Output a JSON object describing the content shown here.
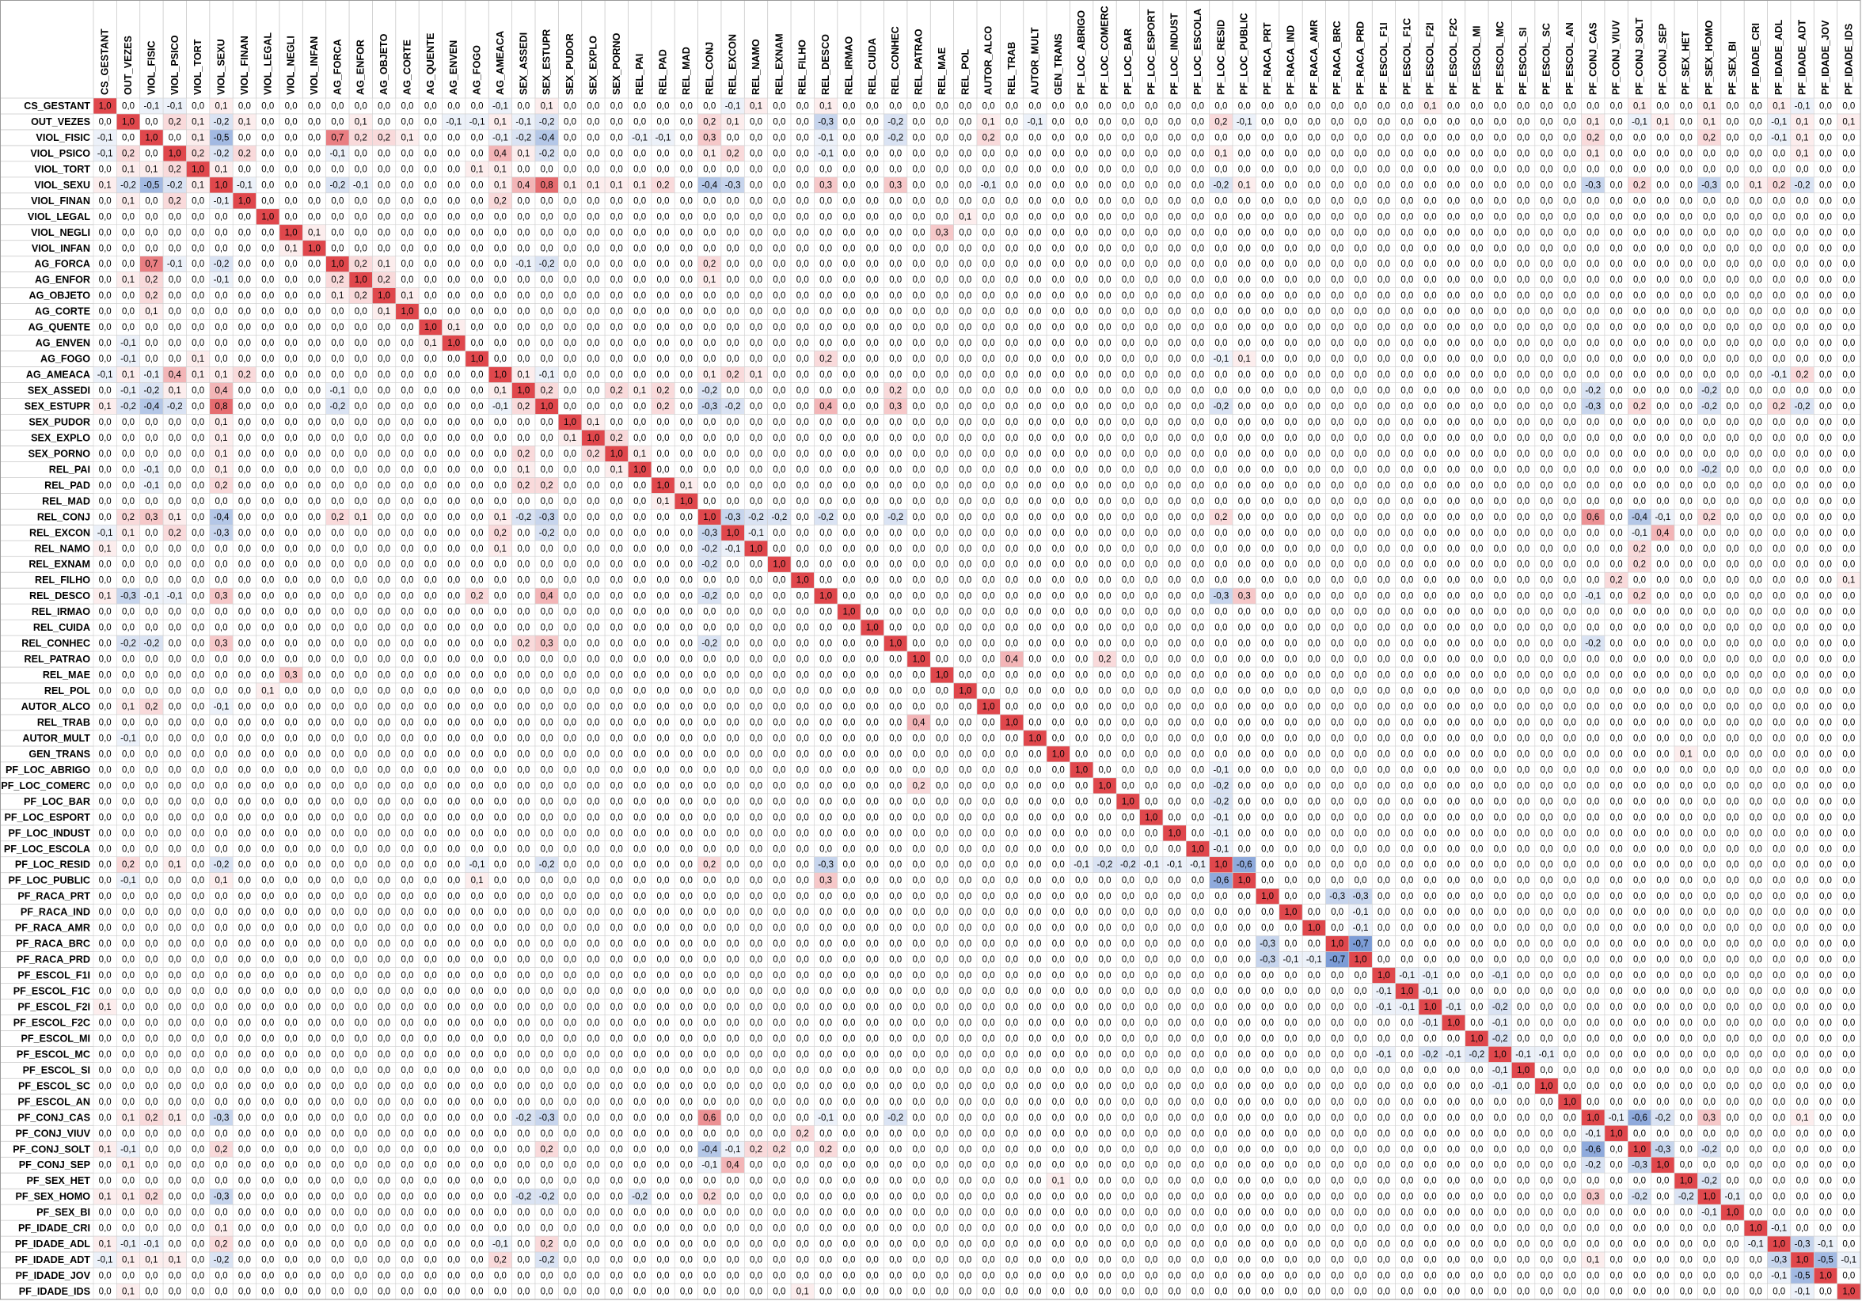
{
  "chart_data": {
    "type": "heatmap",
    "title": "",
    "variables": [
      "CS_GESTANT",
      "OUT_VEZES",
      "VIOL_FISIC",
      "VIOL_PSICO",
      "VIOL_TORT",
      "VIOL_SEXU",
      "VIOL_FINAN",
      "VIOL_LEGAL",
      "VIOL_NEGLI",
      "VIOL_INFAN",
      "AG_FORCA",
      "AG_ENFOR",
      "AG_OBJETO",
      "AG_CORTE",
      "AG_QUENTE",
      "AG_ENVEN",
      "AG_FOGO",
      "AG_AMEACA",
      "SEX_ASSEDI",
      "SEX_ESTUPR",
      "SEX_PUDOR",
      "SEX_EXPLO",
      "SEX_PORNO",
      "REL_PAI",
      "REL_PAD",
      "REL_MAD",
      "REL_CONJ",
      "REL_EXCON",
      "REL_NAMO",
      "REL_EXNAM",
      "REL_FILHO",
      "REL_DESCO",
      "REL_IRMAO",
      "REL_CUIDA",
      "REL_CONHEC",
      "REL_PATRAO",
      "REL_MAE",
      "REL_POL",
      "AUTOR_ALCO",
      "REL_TRAB",
      "AUTOR_MULT",
      "GEN_TRANS",
      "PF_LOC_ABRIGO",
      "PF_LOC_COMERC",
      "PF_LOC_BAR",
      "PF_LOC_ESPORT",
      "PF_LOC_INDUST",
      "PF_LOC_ESCOLA",
      "PF_LOC_RESID",
      "PF_LOC_PUBLIC",
      "PF_RACA_PRT",
      "PF_RACA_IND",
      "PF_RACA_AMR",
      "PF_RACA_BRC",
      "PF_RACA_PRD",
      "PF_ESCOL_F1I",
      "PF_ESCOL_F1C",
      "PF_ESCOL_F2I",
      "PF_ESCOL_F2C",
      "PF_ESCOL_MI",
      "PF_ESCOL_MC",
      "PF_ESCOL_SI",
      "PF_ESCOL_SC",
      "PF_ESCOL_AN",
      "PF_CONJ_CAS",
      "PF_CONJ_VIUV",
      "PF_CONJ_SOLT",
      "PF_CONJ_SEP",
      "PF_SEX_HET",
      "PF_SEX_HOMO",
      "PF_SEX_BI",
      "PF_IDADE_CRI",
      "PF_IDADE_ADL",
      "PF_IDADE_ADT",
      "PF_IDADE_JOV",
      "PF_IDADE_IDS"
    ],
    "diagonal": 1.0,
    "default_value": 0.0,
    "value_range": [
      -1,
      1
    ],
    "color_scale": {
      "negative": "#4472c4",
      "zero": "#ffffff",
      "positive": "#e0474c"
    },
    "decimal_separator": ",",
    "pairs": [
      [
        "CS_GESTANT",
        "VIOL_FISIC",
        -0.1
      ],
      [
        "CS_GESTANT",
        "VIOL_PSICO",
        -0.1
      ],
      [
        "CS_GESTANT",
        "VIOL_SEXU",
        0.1
      ],
      [
        "CS_GESTANT",
        "AG_FORCA",
        0.0
      ],
      [
        "CS_GESTANT",
        "AG_AMEACA",
        -0.1
      ],
      [
        "CS_GESTANT",
        "SEX_ESTUPR",
        0.1
      ],
      [
        "CS_GESTANT",
        "REL_EXCON",
        -0.1
      ],
      [
        "CS_GESTANT",
        "REL_NAMO",
        0.1
      ],
      [
        "CS_GESTANT",
        "REL_DESCO",
        0.1
      ],
      [
        "CS_GESTANT",
        "PF_IDADE_ADT",
        -0.1
      ],
      [
        "CS_GESTANT",
        "PF_IDADE_ADL",
        0.1
      ],
      [
        "CS_GESTANT",
        "PF_CONJ_SOLT",
        0.1
      ],
      [
        "CS_GESTANT",
        "PF_ESCOL_F2I",
        0.1
      ],
      [
        "CS_GESTANT",
        "PF_SEX_HOMO",
        0.1
      ],
      [
        "OUT_VEZES",
        "VIOL_PSICO",
        0.2
      ],
      [
        "OUT_VEZES",
        "VIOL_SEXU",
        -0.2
      ],
      [
        "OUT_VEZES",
        "VIOL_FINAN",
        0.1
      ],
      [
        "OUT_VEZES",
        "VIOL_TORT",
        0.1
      ],
      [
        "OUT_VEZES",
        "AG_ENFOR",
        0.1
      ],
      [
        "OUT_VEZES",
        "AG_FOGO",
        -0.1
      ],
      [
        "OUT_VEZES",
        "AG_ENVEN",
        -0.1
      ],
      [
        "OUT_VEZES",
        "AG_AMEACA",
        0.1
      ],
      [
        "OUT_VEZES",
        "SEX_ASSEDI",
        -0.1
      ],
      [
        "OUT_VEZES",
        "SEX_ESTUPR",
        -0.2
      ],
      [
        "OUT_VEZES",
        "REL_CONJ",
        0.2
      ],
      [
        "OUT_VEZES",
        "REL_EXCON",
        0.1
      ],
      [
        "OUT_VEZES",
        "REL_DESCO",
        -0.3
      ],
      [
        "OUT_VEZES",
        "REL_CONHEC",
        -0.2
      ],
      [
        "OUT_VEZES",
        "AUTOR_ALCO",
        0.1
      ],
      [
        "OUT_VEZES",
        "AUTOR_MULT",
        -0.1
      ],
      [
        "OUT_VEZES",
        "PF_LOC_RESID",
        0.2
      ],
      [
        "OUT_VEZES",
        "PF_LOC_PUBLIC",
        -0.1
      ],
      [
        "OUT_VEZES",
        "PF_CONJ_CAS",
        0.1
      ],
      [
        "OUT_VEZES",
        "PF_CONJ_SOLT",
        -0.1
      ],
      [
        "OUT_VEZES",
        "PF_CONJ_SEP",
        0.1
      ],
      [
        "OUT_VEZES",
        "PF_SEX_HOMO",
        0.1
      ],
      [
        "OUT_VEZES",
        "PF_IDADE_ADL",
        -0.1
      ],
      [
        "OUT_VEZES",
        "PF_IDADE_ADT",
        0.1
      ],
      [
        "OUT_VEZES",
        "PF_IDADE_IDS",
        0.1
      ],
      [
        "VIOL_FISIC",
        "VIOL_PSICO",
        0.0
      ],
      [
        "VIOL_FISIC",
        "VIOL_TORT",
        0.1
      ],
      [
        "VIOL_FISIC",
        "VIOL_SEXU",
        -0.5
      ],
      [
        "VIOL_FISIC",
        "AG_FORCA",
        0.7
      ],
      [
        "VIOL_FISIC",
        "AG_ENFOR",
        0.2
      ],
      [
        "VIOL_FISIC",
        "AG_OBJETO",
        0.2
      ],
      [
        "VIOL_FISIC",
        "AG_CORTE",
        0.1
      ],
      [
        "VIOL_FISIC",
        "AG_AMEACA",
        -0.1
      ],
      [
        "VIOL_FISIC",
        "SEX_ASSEDI",
        -0.2
      ],
      [
        "VIOL_FISIC",
        "SEX_ESTUPR",
        -0.4
      ],
      [
        "VIOL_FISIC",
        "REL_PAI",
        -0.1
      ],
      [
        "VIOL_FISIC",
        "REL_PAD",
        -0.1
      ],
      [
        "VIOL_FISIC",
        "REL_CONJ",
        0.3
      ],
      [
        "VIOL_FISIC",
        "REL_DESCO",
        -0.1
      ],
      [
        "VIOL_FISIC",
        "REL_CONHEC",
        -0.2
      ],
      [
        "VIOL_FISIC",
        "AUTOR_ALCO",
        0.2
      ],
      [
        "VIOL_FISIC",
        "PF_CONJ_CAS",
        0.2
      ],
      [
        "VIOL_FISIC",
        "PF_SEX_HOMO",
        0.2
      ],
      [
        "VIOL_FISIC",
        "PF_IDADE_ADT",
        0.1
      ],
      [
        "VIOL_FISIC",
        "PF_IDADE_ADL",
        -0.1
      ],
      [
        "VIOL_PSICO",
        "VIOL_TORT",
        0.2
      ],
      [
        "VIOL_PSICO",
        "VIOL_SEXU",
        -0.2
      ],
      [
        "VIOL_PSICO",
        "VIOL_FINAN",
        0.2
      ],
      [
        "VIOL_PSICO",
        "AG_FORCA",
        -0.1
      ],
      [
        "VIOL_PSICO",
        "AG_AMEACA",
        0.4
      ],
      [
        "VIOL_PSICO",
        "SEX_ASSEDI",
        0.1
      ],
      [
        "VIOL_PSICO",
        "SEX_ESTUPR",
        -0.2
      ],
      [
        "VIOL_PSICO",
        "REL_CONJ",
        0.1
      ],
      [
        "VIOL_PSICO",
        "REL_EXCON",
        0.2
      ],
      [
        "VIOL_PSICO",
        "REL_DESCO",
        -0.1
      ],
      [
        "VIOL_PSICO",
        "PF_LOC_RESID",
        0.1
      ],
      [
        "VIOL_PSICO",
        "PF_CONJ_CAS",
        0.1
      ],
      [
        "VIOL_PSICO",
        "PF_IDADE_ADT",
        0.1
      ],
      [
        "VIOL_TORT",
        "VIOL_SEXU",
        0.1
      ],
      [
        "VIOL_TORT",
        "AG_AMEACA",
        0.1
      ],
      [
        "VIOL_TORT",
        "AG_FOGO",
        0.1
      ],
      [
        "VIOL_SEXU",
        "VIOL_FINAN",
        -0.1
      ],
      [
        "VIOL_SEXU",
        "AG_FORCA",
        -0.2
      ],
      [
        "VIOL_SEXU",
        "AG_ENFOR",
        -0.1
      ],
      [
        "VIOL_SEXU",
        "AG_AMEACA",
        0.1
      ],
      [
        "VIOL_SEXU",
        "SEX_ASSEDI",
        0.4
      ],
      [
        "VIOL_SEXU",
        "SEX_ESTUPR",
        0.8
      ],
      [
        "VIOL_SEXU",
        "SEX_PUDOR",
        0.1
      ],
      [
        "VIOL_SEXU",
        "SEX_EXPLO",
        0.1
      ],
      [
        "VIOL_SEXU",
        "SEX_PORNO",
        0.1
      ],
      [
        "VIOL_SEXU",
        "REL_PAI",
        0.1
      ],
      [
        "VIOL_SEXU",
        "REL_PAD",
        0.2
      ],
      [
        "VIOL_SEXU",
        "REL_CONJ",
        -0.4
      ],
      [
        "VIOL_SEXU",
        "REL_EXCON",
        -0.3
      ],
      [
        "VIOL_SEXU",
        "REL_DESCO",
        0.3
      ],
      [
        "VIOL_SEXU",
        "REL_CONHEC",
        0.3
      ],
      [
        "VIOL_SEXU",
        "AUTOR_ALCO",
        -0.1
      ],
      [
        "VIOL_SEXU",
        "PF_LOC_RESID",
        -0.2
      ],
      [
        "VIOL_SEXU",
        "PF_LOC_PUBLIC",
        0.1
      ],
      [
        "VIOL_SEXU",
        "PF_CONJ_CAS",
        -0.3
      ],
      [
        "VIOL_SEXU",
        "PF_CONJ_SOLT",
        0.2
      ],
      [
        "VIOL_SEXU",
        "PF_SEX_HOMO",
        -0.3
      ],
      [
        "VIOL_SEXU",
        "PF_IDADE_CRI",
        0.1
      ],
      [
        "VIOL_SEXU",
        "PF_IDADE_ADL",
        0.2
      ],
      [
        "VIOL_SEXU",
        "PF_IDADE_ADT",
        -0.2
      ],
      [
        "VIOL_FINAN",
        "AG_AMEACA",
        0.2
      ],
      [
        "VIOL_LEGAL",
        "REL_POL",
        0.1
      ],
      [
        "VIOL_NEGLI",
        "REL_MAE",
        0.3
      ],
      [
        "VIOL_NEGLI",
        "VIOL_INFAN",
        0.1
      ],
      [
        "AG_FORCA",
        "AG_ENFOR",
        0.2
      ],
      [
        "AG_FORCA",
        "AG_OBJETO",
        0.1
      ],
      [
        "AG_FORCA",
        "REL_CONJ",
        0.2
      ],
      [
        "AG_FORCA",
        "SEX_ESTUPR",
        -0.2
      ],
      [
        "AG_FORCA",
        "SEX_ASSEDI",
        -0.1
      ],
      [
        "AG_ENFOR",
        "AG_OBJETO",
        0.2
      ],
      [
        "AG_ENFOR",
        "REL_CONJ",
        0.1
      ],
      [
        "AG_OBJETO",
        "AG_CORTE",
        0.1
      ],
      [
        "AG_QUENTE",
        "AG_ENVEN",
        0.1
      ],
      [
        "AG_FOGO",
        "REL_DESCO",
        0.2
      ],
      [
        "AG_FOGO",
        "PF_LOC_RESID",
        -0.1
      ],
      [
        "AG_FOGO",
        "PF_LOC_PUBLIC",
        0.1
      ],
      [
        "AG_AMEACA",
        "SEX_ASSEDI",
        0.1
      ],
      [
        "AG_AMEACA",
        "SEX_ESTUPR",
        -0.1
      ],
      [
        "AG_AMEACA",
        "REL_EXCON",
        0.2
      ],
      [
        "AG_AMEACA",
        "REL_NAMO",
        0.1
      ],
      [
        "AG_AMEACA",
        "REL_CONJ",
        0.1
      ],
      [
        "AG_AMEACA",
        "PF_IDADE_ADT",
        0.2
      ],
      [
        "AG_AMEACA",
        "PF_IDADE_ADL",
        -0.1
      ],
      [
        "SEX_ASSEDI",
        "SEX_ESTUPR",
        0.2
      ],
      [
        "SEX_ASSEDI",
        "SEX_PORNO",
        0.2
      ],
      [
        "SEX_ASSEDI",
        "REL_PAD",
        0.2
      ],
      [
        "SEX_ASSEDI",
        "REL_PAI",
        0.1
      ],
      [
        "SEX_ASSEDI",
        "REL_CONJ",
        -0.2
      ],
      [
        "SEX_ASSEDI",
        "REL_CONHEC",
        0.2
      ],
      [
        "SEX_ASSEDI",
        "PF_CONJ_CAS",
        -0.2
      ],
      [
        "SEX_ASSEDI",
        "PF_SEX_HOMO",
        -0.2
      ],
      [
        "SEX_ESTUPR",
        "REL_PAD",
        0.2
      ],
      [
        "SEX_ESTUPR",
        "REL_CONJ",
        -0.3
      ],
      [
        "SEX_ESTUPR",
        "REL_EXCON",
        -0.2
      ],
      [
        "SEX_ESTUPR",
        "REL_DESCO",
        0.4
      ],
      [
        "SEX_ESTUPR",
        "REL_CONHEC",
        0.3
      ],
      [
        "SEX_ESTUPR",
        "PF_LOC_RESID",
        -0.2
      ],
      [
        "SEX_ESTUPR",
        "PF_CONJ_CAS",
        -0.3
      ],
      [
        "SEX_ESTUPR",
        "PF_CONJ_SOLT",
        0.2
      ],
      [
        "SEX_ESTUPR",
        "PF_SEX_HOMO",
        -0.2
      ],
      [
        "SEX_ESTUPR",
        "PF_IDADE_ADL",
        0.2
      ],
      [
        "SEX_ESTUPR",
        "PF_IDADE_ADT",
        -0.2
      ],
      [
        "SEX_PUDOR",
        "SEX_EXPLO",
        0.1
      ],
      [
        "SEX_EXPLO",
        "SEX_PORNO",
        0.2
      ],
      [
        "SEX_PORNO",
        "REL_PAI",
        0.1
      ],
      [
        "REL_PAI",
        "PF_SEX_HOMO",
        -0.2
      ],
      [
        "REL_PAD",
        "REL_MAD",
        0.1
      ],
      [
        "REL_CONJ",
        "REL_EXCON",
        -0.3
      ],
      [
        "REL_CONJ",
        "REL_NAMO",
        -0.2
      ],
      [
        "REL_CONJ",
        "REL_EXNAM",
        -0.2
      ],
      [
        "REL_CONJ",
        "REL_DESCO",
        -0.2
      ],
      [
        "REL_CONJ",
        "REL_CONHEC",
        -0.2
      ],
      [
        "REL_CONJ",
        "PF_LOC_RESID",
        0.2
      ],
      [
        "REL_CONJ",
        "PF_CONJ_CAS",
        0.6
      ],
      [
        "REL_CONJ",
        "PF_CONJ_SOLT",
        -0.4
      ],
      [
        "REL_CONJ",
        "PF_CONJ_SEP",
        -0.1
      ],
      [
        "REL_CONJ",
        "PF_SEX_HOMO",
        0.2
      ],
      [
        "REL_EXCON",
        "REL_NAMO",
        -0.1
      ],
      [
        "REL_EXCON",
        "PF_CONJ_SEP",
        0.4
      ],
      [
        "REL_EXCON",
        "PF_CONJ_SOLT",
        -0.1
      ],
      [
        "REL_NAMO",
        "PF_CONJ_SOLT",
        0.2
      ],
      [
        "REL_EXNAM",
        "PF_CONJ_SOLT",
        0.2
      ],
      [
        "REL_FILHO",
        "PF_CONJ_VIUV",
        0.2
      ],
      [
        "REL_FILHO",
        "PF_IDADE_IDS",
        0.1
      ],
      [
        "REL_DESCO",
        "PF_LOC_RESID",
        -0.3
      ],
      [
        "REL_DESCO",
        "PF_LOC_PUBLIC",
        0.3
      ],
      [
        "REL_DESCO",
        "PF_CONJ_CAS",
        -0.1
      ],
      [
        "REL_DESCO",
        "PF_CONJ_SOLT",
        0.2
      ],
      [
        "REL_CONHEC",
        "PF_CONJ_CAS",
        -0.2
      ],
      [
        "REL_PATRAO",
        "REL_TRAB",
        0.4
      ],
      [
        "REL_PATRAO",
        "PF_LOC_COMERC",
        0.2
      ],
      [
        "PF_LOC_RESID",
        "PF_LOC_PUBLIC",
        -0.6
      ],
      [
        "PF_LOC_RESID",
        "PF_LOC_COMERC",
        -0.2
      ],
      [
        "PF_LOC_RESID",
        "PF_LOC_BAR",
        -0.2
      ],
      [
        "PF_LOC_RESID",
        "PF_LOC_ESPORT",
        -0.1
      ],
      [
        "PF_LOC_RESID",
        "PF_LOC_ESCOLA",
        -0.1
      ],
      [
        "PF_LOC_RESID",
        "PF_LOC_ABRIGO",
        -0.1
      ],
      [
        "PF_LOC_RESID",
        "PF_LOC_INDUST",
        -0.1
      ],
      [
        "PF_RACA_PRT",
        "PF_RACA_BRC",
        -0.3
      ],
      [
        "PF_RACA_PRT",
        "PF_RACA_PRD",
        -0.3
      ],
      [
        "PF_RACA_IND",
        "PF_RACA_PRD",
        -0.1
      ],
      [
        "PF_RACA_AMR",
        "PF_RACA_PRD",
        -0.1
      ],
      [
        "PF_RACA_BRC",
        "PF_RACA_PRD",
        -0.7
      ],
      [
        "PF_ESCOL_F1I",
        "PF_ESCOL_F1C",
        -0.1
      ],
      [
        "PF_ESCOL_F1I",
        "PF_ESCOL_F2I",
        -0.1
      ],
      [
        "PF_ESCOL_F1I",
        "PF_ESCOL_MC",
        -0.1
      ],
      [
        "PF_ESCOL_F1C",
        "PF_ESCOL_F2I",
        -0.1
      ],
      [
        "PF_ESCOL_F2I",
        "PF_ESCOL_MC",
        -0.2
      ],
      [
        "PF_ESCOL_F2I",
        "PF_ESCOL_F2C",
        -0.1
      ],
      [
        "PF_ESCOL_F2C",
        "PF_ESCOL_MC",
        -0.1
      ],
      [
        "PF_ESCOL_MI",
        "PF_ESCOL_MC",
        -0.2
      ],
      [
        "PF_ESCOL_MC",
        "PF_ESCOL_SI",
        -0.1
      ],
      [
        "PF_ESCOL_MC",
        "PF_ESCOL_SC",
        -0.1
      ],
      [
        "PF_CONJ_CAS",
        "PF_CONJ_VIUV",
        -0.1
      ],
      [
        "PF_CONJ_CAS",
        "PF_CONJ_SOLT",
        -0.6
      ],
      [
        "PF_CONJ_CAS",
        "PF_CONJ_SEP",
        -0.2
      ],
      [
        "PF_CONJ_CAS",
        "PF_SEX_HOMO",
        0.3
      ],
      [
        "PF_CONJ_SOLT",
        "PF_CONJ_SEP",
        -0.3
      ],
      [
        "PF_CONJ_SOLT",
        "PF_SEX_HOMO",
        -0.2
      ],
      [
        "PF_CONJ_CAS",
        "PF_IDADE_ADT",
        0.1
      ],
      [
        "PF_SEX_HET",
        "PF_SEX_HOMO",
        -0.2
      ],
      [
        "PF_SEX_HOMO",
        "PF_SEX_BI",
        -0.1
      ],
      [
        "PF_SEX_HET",
        "GEN_TRANS",
        0.1
      ],
      [
        "PF_IDADE_CRI",
        "PF_IDADE_ADL",
        -0.1
      ],
      [
        "PF_IDADE_ADL",
        "PF_IDADE_ADT",
        -0.3
      ],
      [
        "PF_IDADE_ADL",
        "PF_IDADE_JOV",
        -0.1
      ],
      [
        "PF_IDADE_ADT",
        "PF_IDADE_JOV",
        -0.5
      ],
      [
        "PF_IDADE_ADT",
        "PF_IDADE_IDS",
        -0.1
      ]
    ]
  }
}
